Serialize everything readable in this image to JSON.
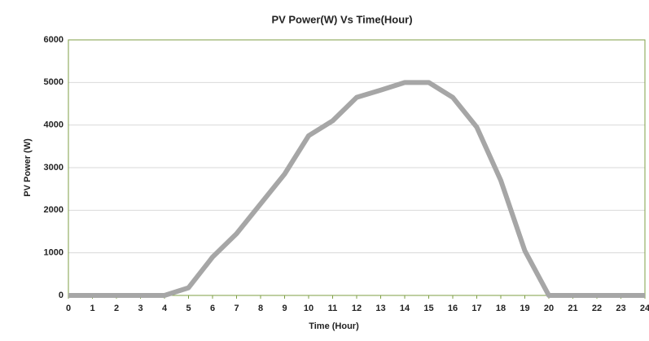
{
  "chart_data": {
    "type": "line",
    "title": "PV Power(W) Vs Time(Hour)",
    "x_label": "Time (Hour)",
    "y_label": "PV Power (W)",
    "x": [
      0,
      1,
      2,
      3,
      4,
      5,
      6,
      7,
      8,
      9,
      10,
      11,
      12,
      13,
      14,
      15,
      16,
      17,
      18,
      19,
      20,
      21,
      22,
      23,
      24
    ],
    "series": [
      {
        "name": "PV Power",
        "color": "#a6a6a6",
        "values": [
          0,
          0,
          0,
          0,
          0,
          180,
          900,
          1450,
          2150,
          2850,
          3750,
          4100,
          4650,
          4820,
          5000,
          5000,
          4650,
          3950,
          2700,
          1050,
          0,
          0,
          0,
          0,
          0
        ]
      }
    ],
    "xlim": [
      0,
      24
    ],
    "xticks": [
      0,
      1,
      2,
      3,
      4,
      5,
      6,
      7,
      8,
      9,
      10,
      11,
      12,
      13,
      14,
      15,
      16,
      17,
      18,
      19,
      20,
      21,
      22,
      23,
      24
    ],
    "ylim": [
      0,
      6000
    ],
    "yticks": [
      0,
      1000,
      2000,
      3000,
      4000,
      5000,
      6000
    ],
    "grid": true
  }
}
